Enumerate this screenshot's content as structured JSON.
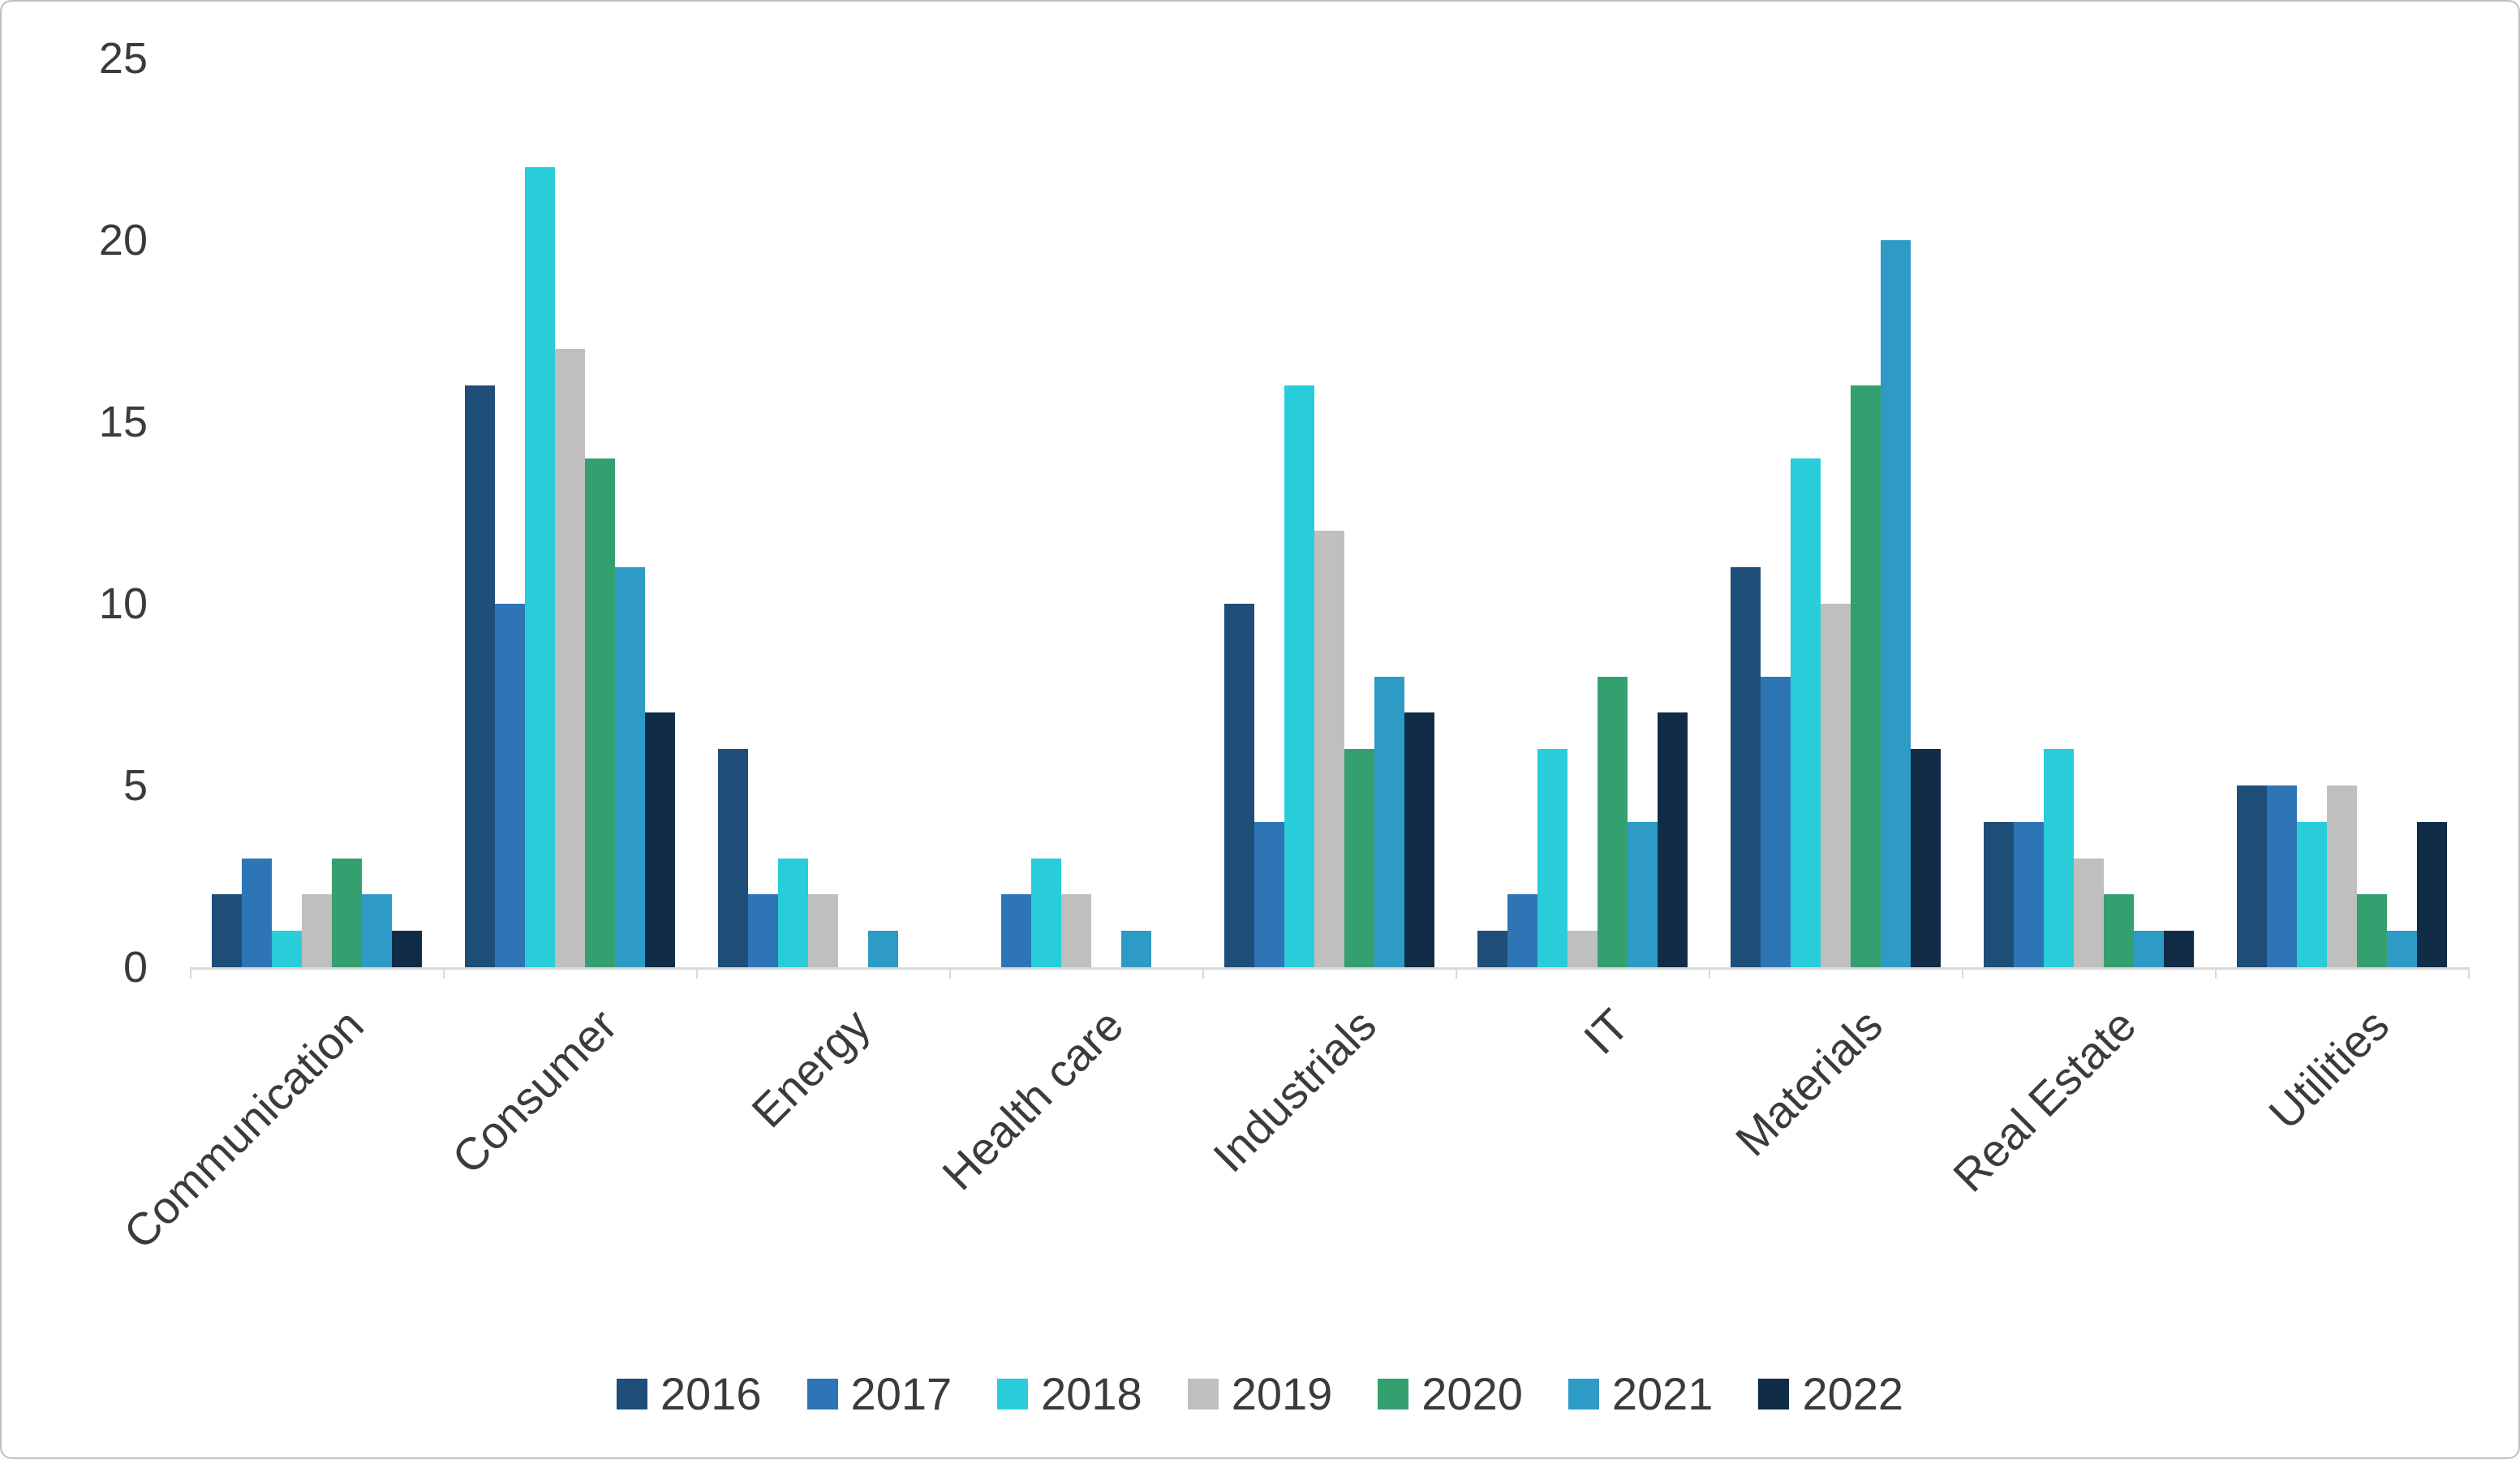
{
  "chart_data": {
    "type": "bar",
    "title": "",
    "xlabel": "",
    "ylabel": "",
    "categories": [
      "Communication",
      "Consumer",
      "Energy",
      "Health care",
      "Industrials",
      "IT",
      "Materials",
      "Real Estate",
      "Utilities"
    ],
    "series": [
      {
        "name": "2016",
        "color": "#1f4e79",
        "values": [
          2,
          16,
          6,
          0,
          10,
          1,
          11,
          4,
          5
        ]
      },
      {
        "name": "2017",
        "color": "#2e75b6",
        "values": [
          3,
          10,
          2,
          2,
          4,
          2,
          8,
          4,
          5
        ]
      },
      {
        "name": "2018",
        "color": "#28cdd9",
        "values": [
          1,
          22,
          3,
          3,
          16,
          6,
          14,
          6,
          4
        ]
      },
      {
        "name": "2019",
        "color": "#bfbfbf",
        "values": [
          2,
          17,
          2,
          2,
          12,
          1,
          10,
          3,
          5
        ]
      },
      {
        "name": "2020",
        "color": "#34a070",
        "values": [
          3,
          14,
          0,
          0,
          6,
          8,
          16,
          2,
          2
        ]
      },
      {
        "name": "2021",
        "color": "#2e9bc7",
        "values": [
          2,
          11,
          1,
          1,
          8,
          4,
          20,
          1,
          1
        ]
      },
      {
        "name": "2022",
        "color": "#102c47",
        "values": [
          1,
          7,
          0,
          0,
          7,
          7,
          6,
          1,
          4
        ]
      }
    ],
    "ylim": [
      0,
      25
    ],
    "yticks": [
      0,
      5,
      10,
      15,
      20,
      25
    ],
    "grid": false,
    "legend_position": "bottom"
  }
}
